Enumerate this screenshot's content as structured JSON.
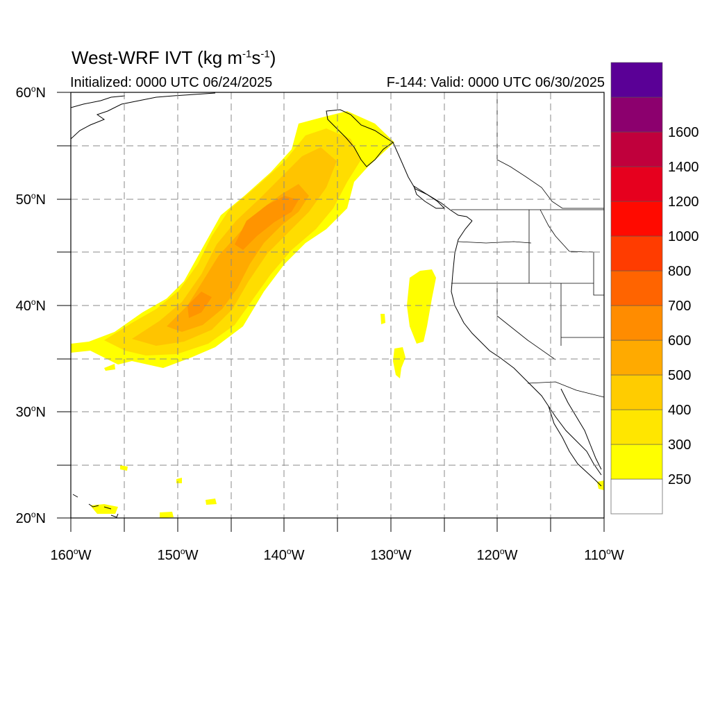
{
  "header": {
    "title_prefix": "West-WRF IVT (kg m",
    "title_exp1": "-1",
    "title_mid": "s",
    "title_exp2": "-1",
    "title_suffix": ")",
    "initialized": "Initialized: 0000 UTC 06/24/2025",
    "valid": "F-144: Valid: 0000 UTC 06/30/2025"
  },
  "axes": {
    "lat_labels": [
      "20",
      "30",
      "40",
      "50",
      "60"
    ],
    "lat_suffix": "N",
    "lon_labels": [
      "160",
      "150",
      "140",
      "130",
      "120",
      "110"
    ],
    "lon_suffix": "W",
    "lat_range": [
      20,
      60
    ],
    "lon_range": [
      -160,
      -110
    ],
    "gridlines": "dashed"
  },
  "colorbar": {
    "labels": [
      "250",
      "300",
      "400",
      "500",
      "600",
      "700",
      "800",
      "1000",
      "1200",
      "1400",
      "1600"
    ],
    "colors": [
      "#ffff00",
      "#ffe600",
      "#ffcc00",
      "#ffaa00",
      "#ff8c00",
      "#ff6400",
      "#ff3c00",
      "#ff0a00",
      "#e6001e",
      "#c0003c",
      "#8c006e",
      "#5a0096"
    ]
  },
  "colors": {
    "land_outline": "#000000",
    "grid": "#888888"
  }
}
